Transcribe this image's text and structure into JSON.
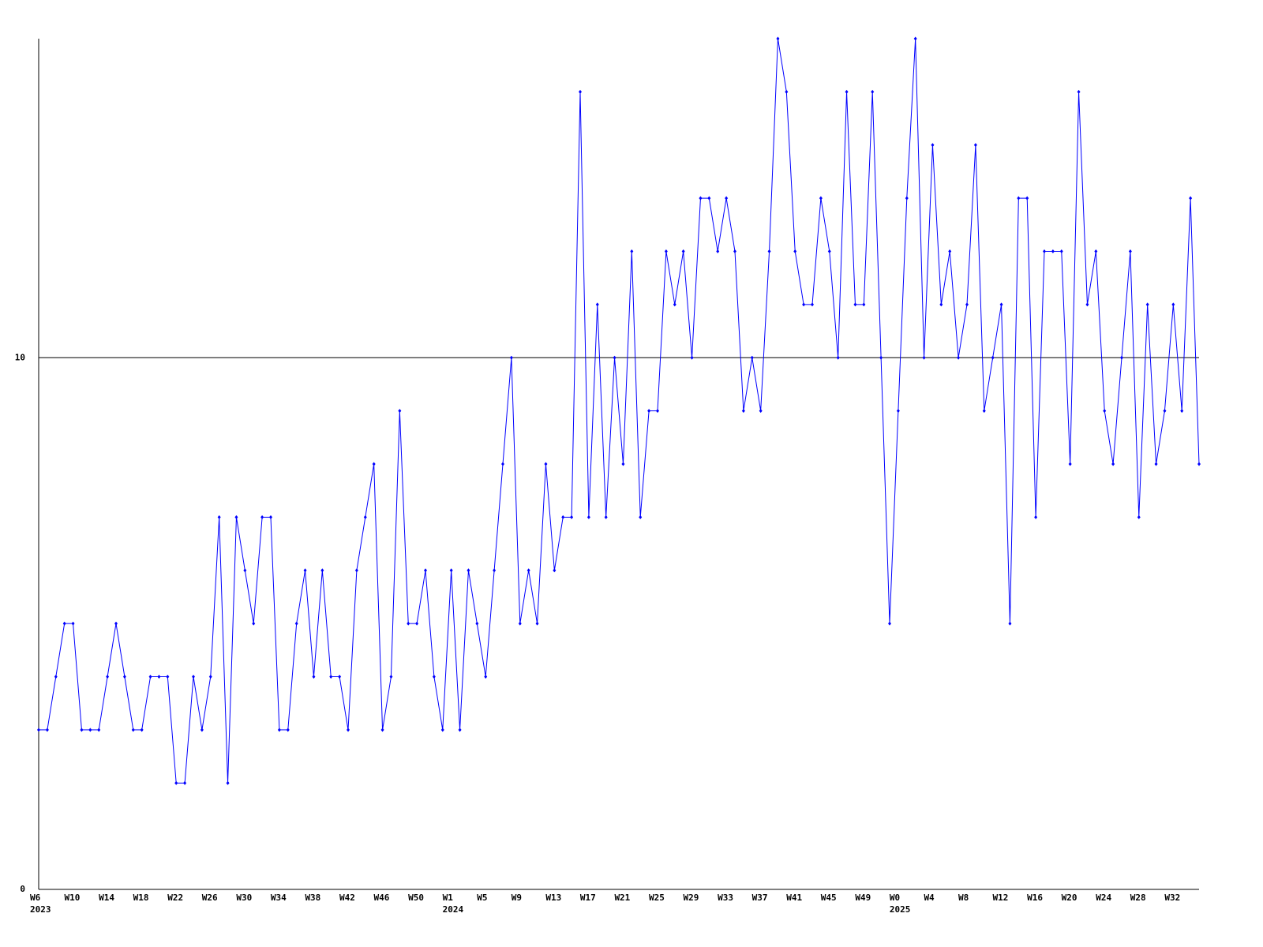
{
  "chart_data": {
    "type": "line",
    "categories": [
      "W6",
      null,
      null,
      null,
      "W10",
      null,
      null,
      null,
      "W14",
      null,
      null,
      null,
      "W18",
      null,
      null,
      null,
      "W22",
      null,
      null,
      null,
      "W26",
      null,
      null,
      null,
      "W30",
      null,
      null,
      null,
      "W34",
      null,
      null,
      null,
      "W38",
      null,
      null,
      null,
      "W42",
      null,
      null,
      null,
      "W46",
      null,
      null,
      null,
      "W50",
      null,
      null,
      null,
      "W1",
      null,
      null,
      null,
      "W5",
      null,
      null,
      null,
      "W9",
      null,
      null,
      null,
      "W13",
      null,
      null,
      null,
      "W17",
      null,
      null,
      null,
      "W21",
      null,
      null,
      null,
      "W25",
      null,
      null,
      null,
      "W29",
      null,
      null,
      null,
      "W33",
      null,
      null,
      null,
      "W37",
      null,
      null,
      null,
      "W41",
      null,
      null,
      null,
      "W45",
      null,
      null,
      null,
      "W49",
      null,
      null,
      null,
      "W0",
      null,
      null,
      null,
      "W4",
      null,
      null,
      null,
      "W8",
      null,
      null,
      null,
      "W12",
      null,
      null,
      null,
      "W16",
      null,
      null,
      null,
      "W20",
      null,
      null,
      null,
      "W24",
      null,
      null,
      null,
      "W28",
      null,
      null,
      null,
      "W32",
      null,
      null,
      null
    ],
    "category_years": [
      "2023",
      null,
      null,
      null,
      null,
      null,
      null,
      null,
      null,
      null,
      null,
      null,
      null,
      null,
      null,
      null,
      null,
      null,
      null,
      null,
      null,
      null,
      null,
      null,
      null,
      null,
      null,
      null,
      null,
      null,
      null,
      null,
      null,
      null,
      null,
      null,
      null,
      null,
      null,
      null,
      null,
      null,
      null,
      null,
      null,
      null,
      null,
      null,
      "2024",
      null,
      null,
      null,
      null,
      null,
      null,
      null,
      null,
      null,
      null,
      null,
      null,
      null,
      null,
      null,
      null,
      null,
      null,
      null,
      null,
      null,
      null,
      null,
      null,
      null,
      null,
      null,
      null,
      null,
      null,
      null,
      null,
      null,
      null,
      null,
      null,
      null,
      null,
      null,
      null,
      null,
      null,
      null,
      null,
      null,
      null,
      null,
      null,
      null,
      null,
      null,
      "2025",
      null,
      null,
      null,
      null,
      null,
      null,
      null,
      null,
      null,
      null,
      null,
      null,
      null,
      null,
      null,
      null,
      null,
      null,
      null,
      null,
      null,
      null,
      null,
      null,
      null,
      null,
      null,
      null,
      null,
      null,
      null,
      null,
      null,
      null,
      null
    ],
    "series": [
      {
        "color": "#0000ff",
        "values": [
          3,
          3,
          4,
          5,
          5,
          3,
          3,
          3,
          4,
          5,
          4,
          3,
          3,
          4,
          4,
          4,
          2,
          2,
          4,
          3,
          4,
          7,
          2,
          7,
          6,
          5,
          7,
          7,
          3,
          3,
          5,
          6,
          4,
          6,
          4,
          4,
          3,
          6,
          7,
          8,
          3,
          4,
          9,
          5,
          5,
          6,
          4,
          3,
          6,
          3,
          6,
          5,
          4,
          6,
          8,
          10,
          5,
          6,
          5,
          8,
          6,
          7,
          7,
          15,
          7,
          11,
          7,
          10,
          8,
          12,
          7,
          9,
          9,
          12,
          11,
          12,
          10,
          13,
          13,
          12,
          13,
          12,
          9,
          10,
          9,
          12,
          16,
          15,
          12,
          11,
          11,
          13,
          12,
          10,
          15,
          11,
          11,
          15,
          10,
          5,
          9,
          13,
          16,
          10,
          14,
          11,
          12,
          10,
          11,
          14,
          9,
          10,
          11,
          5,
          13,
          13,
          7,
          12,
          12,
          12,
          8,
          15,
          11,
          12,
          9,
          8,
          10,
          12,
          7,
          11,
          8,
          9,
          11,
          9,
          13,
          8
        ]
      }
    ],
    "ylim": [
      0,
      16
    ],
    "yticks": [
      0,
      10
    ],
    "grid": true
  }
}
